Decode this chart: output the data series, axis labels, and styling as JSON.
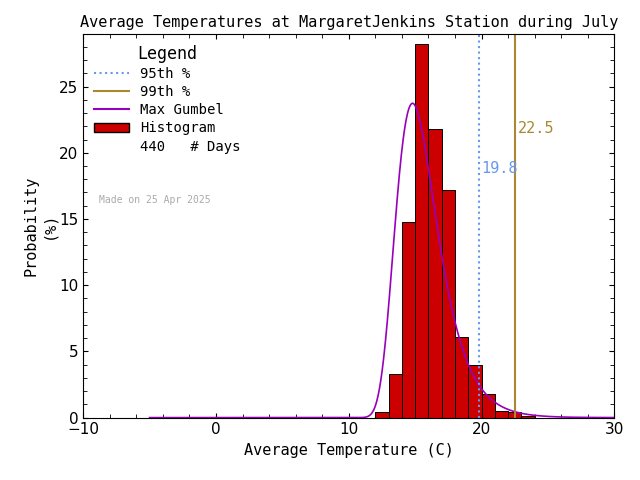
{
  "title": "Average Temperatures at MargaretJenkins Station during July",
  "xlabel": "Average Temperature (C)",
  "ylabel_line1": "Probability",
  "ylabel_line2": "(%)",
  "xlim": [
    -10,
    30
  ],
  "ylim": [
    0,
    29
  ],
  "yticks": [
    0,
    5,
    10,
    15,
    20,
    25
  ],
  "xticks": [
    -10,
    0,
    10,
    20,
    30
  ],
  "bin_edges": [
    12.0,
    13.0,
    14.0,
    15.0,
    16.0,
    17.0,
    18.0,
    19.0,
    20.0,
    21.0,
    22.0,
    23.0,
    24.0
  ],
  "bin_heights": [
    0.45,
    3.3,
    14.8,
    28.2,
    21.8,
    17.2,
    6.1,
    4.0,
    1.8,
    0.5,
    0.45,
    0.1
  ],
  "gumbel_mu": 14.8,
  "gumbel_beta": 1.55,
  "gumbel_scale": 100.0,
  "percentile_95": 19.8,
  "percentile_99": 22.5,
  "n_days": 440,
  "made_on": "Made on 25 Apr 2025",
  "bar_color": "#cc0000",
  "bar_edge_color": "#000000",
  "gumbel_color": "#9900bb",
  "pct95_color": "#6699ee",
  "pct99_color": "#aa8833",
  "bg_color": "#ffffff",
  "made_on_color": "#aaaaaa",
  "font_family": "monospace",
  "title_fontsize": 11,
  "label_fontsize": 11,
  "tick_fontsize": 11,
  "legend_fontsize": 10,
  "annotation_fontsize": 11
}
